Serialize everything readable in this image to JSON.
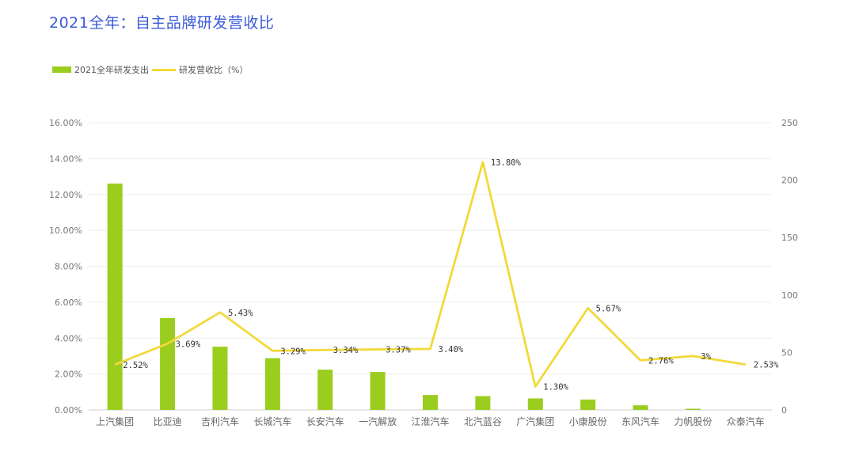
{
  "title": "2021全年：自主品牌研发营收比",
  "legend": {
    "bar_label": "2021全年研发支出",
    "line_label": "研发营收比（%）"
  },
  "colors": {
    "bar": "#9acd1e",
    "line": "#f2d93a",
    "title": "#3a5bd9"
  },
  "chart_data": {
    "type": "bar",
    "title": "2021全年：自主品牌研发营收比",
    "categories": [
      "上汽集团",
      "比亚迪",
      "吉利汽车",
      "长城汽车",
      "长安汽车",
      "一汽解放",
      "江淮汽车",
      "北汽蓝谷",
      "广汽集团",
      "小康股份",
      "东风汽车",
      "力帆股份",
      "众泰汽车"
    ],
    "series": [
      {
        "name": "2021全年研发支出",
        "type": "bar",
        "axis": "right",
        "values": [
          197,
          80,
          55,
          45,
          35,
          33,
          13,
          12,
          10,
          9,
          4,
          1,
          0
        ]
      },
      {
        "name": "研发营收比（%）",
        "type": "line",
        "axis": "left",
        "values": [
          2.52,
          3.69,
          5.43,
          3.29,
          3.34,
          3.37,
          3.4,
          13.8,
          1.3,
          5.67,
          2.76,
          3.0,
          2.53
        ],
        "labels": [
          "2.52%",
          "3.69%",
          "5.43%",
          "3.29%",
          "3.34%",
          "3.37%",
          "3.40%",
          "13.80%",
          "1.30%",
          "5.67%",
          "2.76%",
          "3%",
          "2.53%"
        ]
      }
    ],
    "left_axis": {
      "ticks": [
        "0.00%",
        "2.00%",
        "4.00%",
        "6.00%",
        "8.00%",
        "10.00%",
        "12.00%",
        "14.00%",
        "16.00%"
      ],
      "ylim": [
        0,
        16
      ]
    },
    "right_axis": {
      "ticks": [
        "0",
        "50",
        "100",
        "150",
        "200",
        "250"
      ],
      "ylim": [
        0,
        250
      ]
    },
    "grid": true,
    "legend_position": "top-left"
  }
}
